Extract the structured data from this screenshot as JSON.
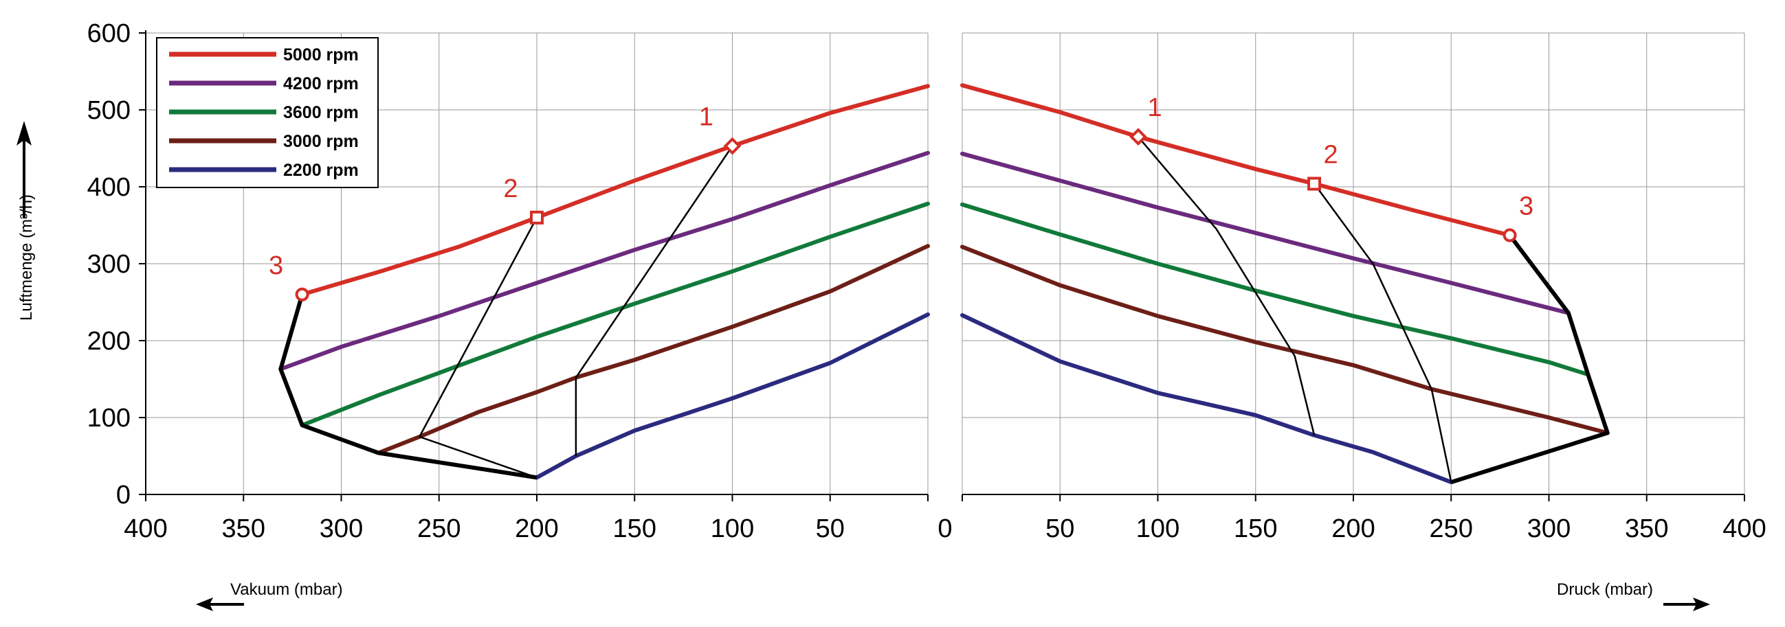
{
  "chart_data": [
    {
      "type": "line",
      "side": "left",
      "xlabel": "Vakuum (mbar)",
      "ylabel": "Luftmenge (m³/h)",
      "xlim": [
        400,
        0
      ],
      "ylim": [
        0,
        600
      ],
      "xticks": [
        "400",
        "350",
        "300",
        "250",
        "200",
        "150",
        "100",
        "50",
        "0"
      ],
      "yticks": [
        "0",
        "100",
        "200",
        "300",
        "400",
        "500",
        "600"
      ],
      "grid": true,
      "series": [
        {
          "name": "5000 rpm",
          "color": "#d42e26",
          "x": [
            320,
            280,
            240,
            200,
            150,
            100,
            50,
            0
          ],
          "y": [
            260,
            290,
            322,
            360,
            408,
            453,
            496,
            531
          ]
        },
        {
          "name": "4200 rpm",
          "color": "#6b2a7e",
          "x": [
            331,
            300,
            250,
            200,
            150,
            100,
            50,
            0
          ],
          "y": [
            163,
            192,
            232,
            275,
            318,
            358,
            402,
            444
          ]
        },
        {
          "name": "3600 rpm",
          "color": "#117a3a",
          "x": [
            320,
            280,
            250,
            200,
            150,
            100,
            50,
            0
          ],
          "y": [
            90,
            130,
            158,
            205,
            248,
            290,
            335,
            378
          ]
        },
        {
          "name": "3000 rpm",
          "color": "#6d1f17",
          "x": [
            281,
            260,
            230,
            200,
            180,
            150,
            100,
            50,
            0
          ],
          "y": [
            54,
            75,
            107,
            133,
            152,
            175,
            218,
            264,
            323
          ]
        },
        {
          "name": "2200 rpm",
          "color": "#2b2a7f",
          "x": [
            200,
            180,
            150,
            100,
            50,
            0
          ],
          "y": [
            22,
            50,
            83,
            125,
            171,
            234
          ]
        }
      ],
      "points": [
        {
          "label": "1",
          "marker": "diamond",
          "x": 100,
          "y": 453
        },
        {
          "label": "2",
          "marker": "square",
          "x": 200,
          "y": 360
        },
        {
          "label": "3",
          "marker": "circle",
          "x": 320,
          "y": 260
        }
      ],
      "envelope": {
        "x": [
          320,
          331,
          320,
          281,
          200
        ],
        "y": [
          260,
          163,
          90,
          54,
          22
        ]
      },
      "operating_lines": [
        {
          "x": [
            200,
            260
          ],
          "y": [
            360,
            75
          ]
        },
        {
          "x": [
            260,
            200
          ],
          "y": [
            75,
            22
          ]
        },
        {
          "x": [
            100,
            180,
            180
          ],
          "y": [
            453,
            152,
            50
          ]
        }
      ]
    },
    {
      "type": "line",
      "side": "right",
      "xlabel": "Druck (mbar)",
      "ylabel": "",
      "xlim": [
        0,
        400
      ],
      "ylim": [
        0,
        600
      ],
      "xticks": [
        "0",
        "50",
        "100",
        "150",
        "200",
        "250",
        "300",
        "350",
        "400"
      ],
      "grid": true,
      "series": [
        {
          "name": "5000 rpm",
          "color": "#d42e26",
          "x": [
            0,
            50,
            90,
            150,
            180,
            230,
            280
          ],
          "y": [
            532,
            497,
            465,
            423,
            404,
            370,
            337
          ]
        },
        {
          "name": "4200 rpm",
          "color": "#6b2a7e",
          "x": [
            0,
            50,
            100,
            150,
            200,
            250,
            310
          ],
          "y": [
            443,
            408,
            373,
            340,
            307,
            275,
            236
          ]
        },
        {
          "name": "3600 rpm",
          "color": "#117a3a",
          "x": [
            0,
            50,
            100,
            150,
            200,
            250,
            300,
            320
          ],
          "y": [
            377,
            338,
            300,
            265,
            232,
            203,
            172,
            156
          ]
        },
        {
          "name": "3000 rpm",
          "color": "#6d1f17",
          "x": [
            0,
            50,
            100,
            150,
            200,
            240,
            300,
            330
          ],
          "y": [
            322,
            272,
            232,
            198,
            168,
            137,
            100,
            80
          ]
        },
        {
          "name": "2200 rpm",
          "color": "#2b2a7f",
          "x": [
            0,
            50,
            100,
            150,
            180,
            210,
            250
          ],
          "y": [
            233,
            173,
            132,
            103,
            77,
            55,
            16
          ]
        }
      ],
      "points": [
        {
          "label": "1",
          "marker": "diamond",
          "x": 90,
          "y": 465
        },
        {
          "label": "2",
          "marker": "square",
          "x": 180,
          "y": 404
        },
        {
          "label": "3",
          "marker": "circle",
          "x": 280,
          "y": 337
        }
      ],
      "envelope": {
        "x": [
          280,
          310,
          320,
          330,
          250
        ],
        "y": [
          337,
          236,
          156,
          80,
          16
        ]
      },
      "operating_lines": [
        {
          "x": [
            90,
            130,
            170,
            180
          ],
          "y": [
            465,
            345,
            180,
            77
          ]
        },
        {
          "x": [
            180,
            210,
            240,
            250
          ],
          "y": [
            404,
            300,
            137,
            16
          ]
        }
      ]
    }
  ],
  "legend": {
    "placement": "top-left",
    "items": [
      {
        "label": "5000 rpm",
        "color": "#d42e26"
      },
      {
        "label": "4200 rpm",
        "color": "#6b2a7e"
      },
      {
        "label": "3600 rpm",
        "color": "#117a3a"
      },
      {
        "label": "3000 rpm",
        "color": "#6d1f17"
      },
      {
        "label": "2200 rpm",
        "color": "#2b2a7f"
      }
    ]
  },
  "colors": {
    "point_label": "#d42e26",
    "grid": "#999999",
    "envelope": "#000000"
  }
}
